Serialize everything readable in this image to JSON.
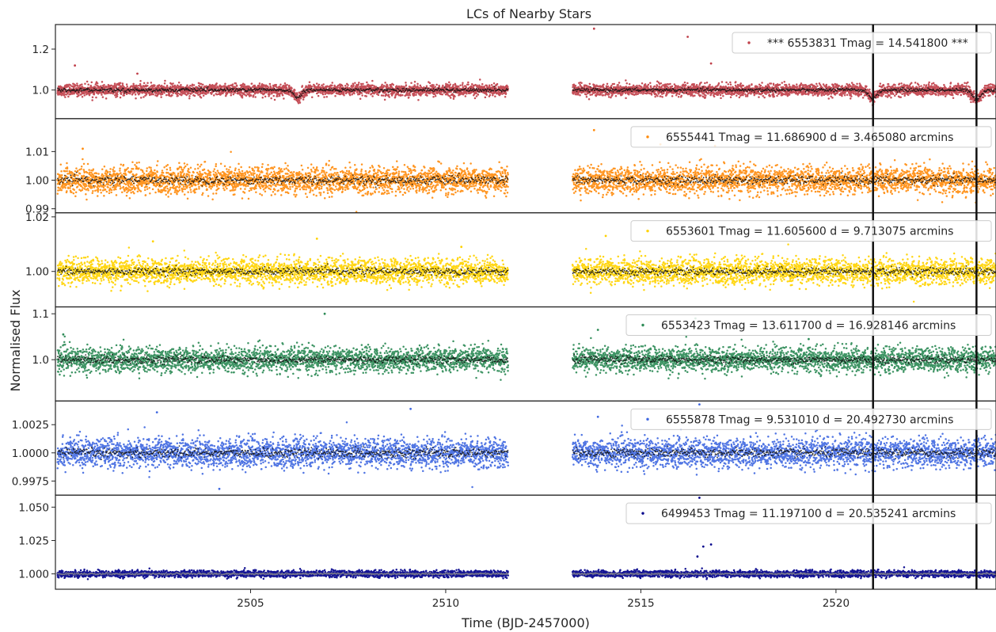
{
  "title": "LCs of Nearby Stars",
  "xlabel": "Time (BJD-2457000)",
  "ylabel": "Normalised Flux",
  "chart_data": {
    "type": "scatter",
    "title": "LCs of Nearby Stars",
    "xlabel": "Time (BJD-2457000)",
    "ylabel": "Normalised Flux",
    "xlim": [
      2500.0,
      2524.1
    ],
    "x_ticks": [
      "2505",
      "2510",
      "2515",
      "2520"
    ],
    "x_tick_values": [
      2505,
      2510,
      2515,
      2520
    ],
    "data_gap": [
      2511.6,
      2513.2
    ],
    "segments": [
      [
        2500.05,
        2511.6
      ],
      [
        2513.25,
        2524.1
      ]
    ],
    "vertical_lines": [
      2520.95,
      2523.6
    ],
    "binned_overlay_color": "#111111",
    "panels": [
      {
        "legend": "*** 6553831  Tmag = 14.541800 ***",
        "color": "#c0404a",
        "baseline": 1.0,
        "scatter": 0.026,
        "ylim": [
          0.86,
          1.32
        ],
        "y_ticks": [
          1.0,
          1.2
        ],
        "y_tick_labels": [
          "1.0",
          "1.2"
        ],
        "dips": [
          [
            2506.2,
            -0.035
          ],
          [
            2520.95,
            -0.04
          ],
          [
            2523.6,
            -0.045
          ]
        ],
        "outliers": [
          [
            2500.5,
            1.12
          ],
          [
            2513.8,
            1.3
          ],
          [
            2516.2,
            1.26
          ],
          [
            2502.1,
            1.08
          ],
          [
            2516.8,
            1.13
          ]
        ]
      },
      {
        "legend": "6555441  Tmag = 11.686900   d = 3.465080 arcmins",
        "color": "#ff8c0e",
        "baseline": 1.0,
        "scatter": 0.0042,
        "ylim": [
          0.9886,
          1.0215
        ],
        "y_ticks": [
          0.99,
          1.0,
          1.01
        ],
        "y_tick_labels": [
          "0.99",
          "1.00",
          "1.01"
        ],
        "dips": [],
        "outliers": [
          [
            2513.8,
            1.0175
          ],
          [
            2515.5,
            1.0125
          ],
          [
            2516.9,
            1.012
          ],
          [
            2500.7,
            1.011
          ]
        ]
      },
      {
        "legend": "6553601  Tmag = 11.605600   d = 9.713075 arcmins",
        "color": "#ffd200",
        "baseline": 1.0,
        "scatter": 0.0042,
        "ylim": [
          0.987,
          1.0215
        ],
        "y_ticks": [
          1.0,
          1.02
        ],
        "y_tick_labels": [
          "1.00",
          "1.02"
        ],
        "dips": [],
        "outliers": [
          [
            2505.3,
            1.023
          ],
          [
            2506.7,
            1.012
          ],
          [
            2502.5,
            1.011
          ],
          [
            2514.1,
            1.013
          ],
          [
            2510.4,
            1.009
          ]
        ]
      },
      {
        "legend": "6553423  Tmag = 13.611700   d = 16.928146 arcmins",
        "color": "#2e8b57",
        "baseline": 1.0,
        "scatter": 0.024,
        "ylim": [
          0.91,
          1.115
        ],
        "y_ticks": [
          1.0,
          1.1
        ],
        "y_tick_labels": [
          "1.0",
          "1.1"
        ],
        "dips": [],
        "outliers": [
          [
            2506.9,
            1.1
          ],
          [
            2513.9,
            1.065
          ],
          [
            2516.4,
            1.09
          ],
          [
            2500.2,
            1.055
          ],
          [
            2519.3,
            1.045
          ]
        ]
      },
      {
        "legend": "6555878  Tmag = 9.531010   d = 20.492730 arcmins",
        "color": "#4169e1",
        "baseline": 1.0,
        "scatter": 0.00115,
        "ylim": [
          0.99625,
          1.0046
        ],
        "y_ticks": [
          0.9975,
          1.0,
          1.0025
        ],
        "y_tick_labels": [
          "0.9975",
          "1.0000",
          "1.0025"
        ],
        "dips": [],
        "outliers": [
          [
            2502.6,
            1.0036
          ],
          [
            2509.1,
            1.0039
          ],
          [
            2516.5,
            1.0043
          ],
          [
            2513.9,
            1.0032
          ],
          [
            2504.2,
            0.9968
          ]
        ]
      },
      {
        "legend": "6499453  Tmag = 11.197100   d = 20.535241 arcmins",
        "color": "#00008b",
        "baseline": 1.0,
        "scatter": 0.0021,
        "ylim": [
          0.9885,
          1.059
        ],
        "y_ticks": [
          1.0,
          1.025,
          1.05
        ],
        "y_tick_labels": [
          "1.000",
          "1.025",
          "1.050"
        ],
        "dips": [],
        "outliers": [
          [
            2516.6,
            1.0205
          ],
          [
            2516.8,
            1.022
          ],
          [
            2516.5,
            1.057
          ],
          [
            2516.45,
            1.013
          ]
        ]
      }
    ]
  }
}
